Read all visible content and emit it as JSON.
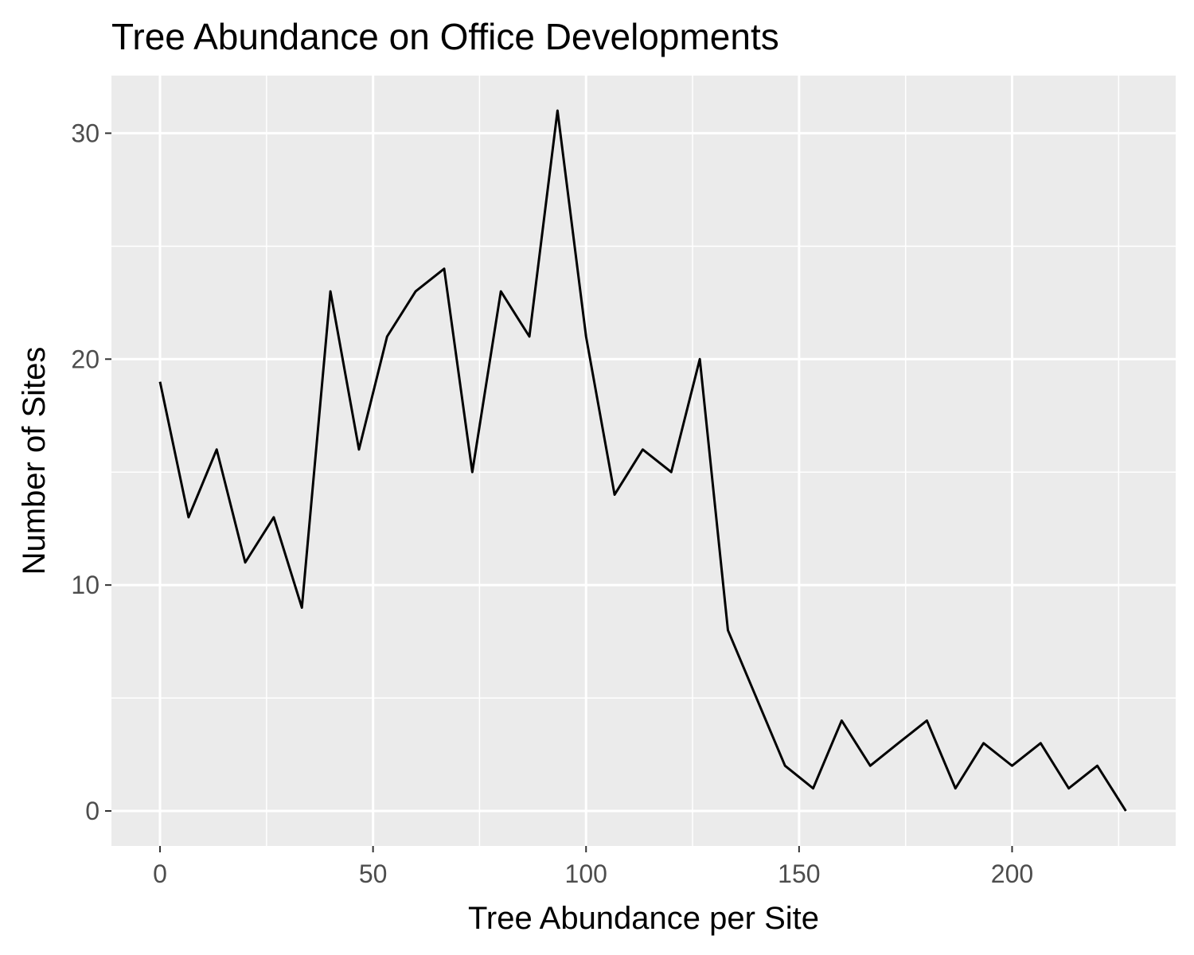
{
  "chart_data": {
    "type": "line",
    "title": "Tree Abundance on Office Developments",
    "xlabel": "Tree Abundance per Site",
    "ylabel": "Number of Sites",
    "xlim": [
      -11.4,
      238.4
    ],
    "ylim": [
      -1.55,
      32.55
    ],
    "x_ticks": [
      0,
      50,
      100,
      150,
      200
    ],
    "x_tick_labels": [
      "0",
      "50",
      "100",
      "150",
      "200"
    ],
    "x_minor_ticks": [
      25,
      75,
      125,
      175,
      225
    ],
    "y_ticks": [
      0,
      10,
      20,
      30
    ],
    "y_tick_labels": [
      "0",
      "10",
      "20",
      "30"
    ],
    "y_minor_ticks": [
      5,
      15,
      25
    ],
    "grid": true,
    "legend": "none",
    "colors": {
      "panel_background": "#ebebeb",
      "grid": "#ffffff",
      "line": "#000000",
      "tick_label": "#4d4d4d",
      "tick_mark": "#333333"
    },
    "series": [
      {
        "x": [
          0,
          6.7,
          13.3,
          20,
          26.7,
          33.3,
          40,
          46.7,
          53.3,
          60,
          66.7,
          73.3,
          80,
          86.7,
          93.3,
          100,
          106.7,
          113.3,
          120,
          126.7,
          133.3,
          140,
          146.7,
          153.3,
          160,
          166.7,
          173.3,
          180,
          186.7,
          193.3,
          200,
          206.7,
          213.3,
          220,
          226.7
        ],
        "values": [
          19,
          13,
          16,
          11,
          13,
          9,
          23,
          16,
          21,
          23,
          24,
          15,
          23,
          21,
          31,
          21,
          14,
          16,
          15,
          20,
          8,
          5,
          2,
          1,
          4,
          2,
          3,
          4,
          1,
          3,
          2,
          3,
          1,
          2,
          0
        ]
      }
    ]
  }
}
